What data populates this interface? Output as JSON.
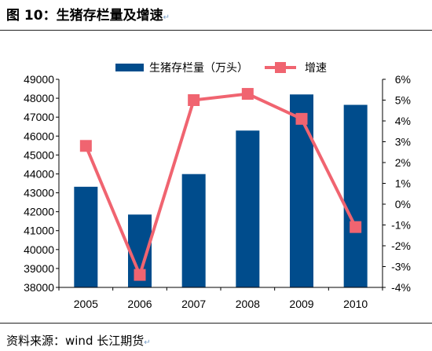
{
  "figure": {
    "title": "图 10：生猪存栏量及增速",
    "return_mark": "↵",
    "source": "资料来源：wind   长江期货"
  },
  "colors": {
    "bar": "#004c8c",
    "line": "#f06470",
    "axis": "#000000"
  },
  "chart_data": {
    "type": "bar",
    "categories": [
      "2005",
      "2006",
      "2007",
      "2008",
      "2009",
      "2010"
    ],
    "series": [
      {
        "name": "生猪存栏量（万头）",
        "type": "bar",
        "axis": "left",
        "values": [
          43320,
          41850,
          43990,
          46290,
          48200,
          47650
        ]
      },
      {
        "name": "增速",
        "type": "line",
        "axis": "right",
        "marker": "square",
        "values": [
          2.8,
          -3.4,
          5.0,
          5.3,
          4.1,
          -1.1
        ]
      }
    ],
    "y_left": {
      "min": 38000,
      "max": 49000,
      "step": 1000,
      "ticks": [
        "38000",
        "39000",
        "40000",
        "41000",
        "42000",
        "43000",
        "44000",
        "45000",
        "46000",
        "47000",
        "48000",
        "49000"
      ]
    },
    "y_right": {
      "min": -4,
      "max": 6,
      "step": 1,
      "ticks": [
        "-4%",
        "-3%",
        "-2%",
        "-1%",
        "0%",
        "1%",
        "2%",
        "3%",
        "4%",
        "5%",
        "6%"
      ]
    },
    "legend_position": "top",
    "grid": false
  }
}
